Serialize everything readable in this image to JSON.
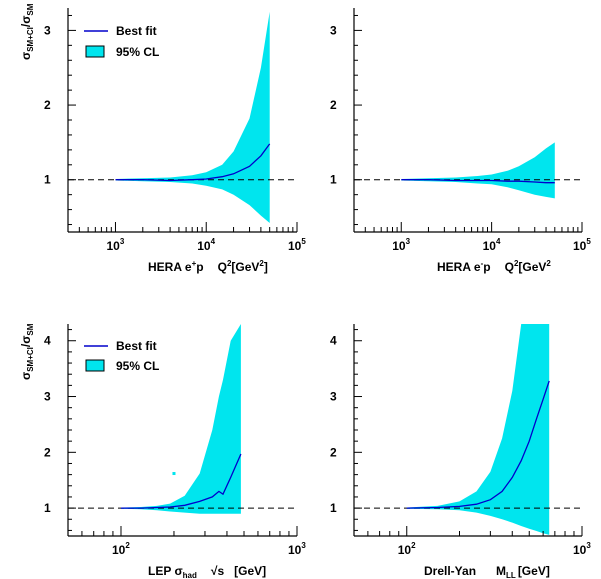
{
  "colors": {
    "band": "#00e5ee",
    "fit": "#0000cc",
    "reference": "#000000"
  },
  "chart_data": [
    {
      "type": "area",
      "id": "hera-eplus",
      "xscale": "log",
      "xlim": [
        300,
        100000
      ],
      "ylim": [
        0.3,
        3.3
      ],
      "yticks": [
        1,
        2,
        3
      ],
      "xtick_exponents": [
        3,
        4,
        5
      ],
      "xlabel": {
        "main": "HERA e",
        "sup1": "+",
        "tail": "p",
        "var": "Q",
        "sup2": "2",
        "unit": "[GeV",
        "sup3": "2",
        "end": "]"
      },
      "ylabel": {
        "base": "σ",
        "sub1": "SM+CI",
        "sep": "/σ",
        "sub2": "SM"
      },
      "reference_line": 1,
      "legend": {
        "fit_label": "Best fit",
        "band_label": "95% CL",
        "placement": "top-left"
      },
      "x": [
        1000,
        2000,
        4000,
        7000,
        10000,
        15000,
        20000,
        30000,
        40000,
        50000
      ],
      "best_fit": [
        1.0,
        1.0,
        0.99,
        1.0,
        1.01,
        1.04,
        1.08,
        1.18,
        1.32,
        1.48
      ],
      "band_upper": [
        1.01,
        1.02,
        1.03,
        1.06,
        1.1,
        1.2,
        1.38,
        1.82,
        2.5,
        3.25
      ],
      "band_lower": [
        0.99,
        0.98,
        0.97,
        0.95,
        0.92,
        0.87,
        0.8,
        0.66,
        0.52,
        0.42
      ]
    },
    {
      "type": "area",
      "id": "hera-eminus",
      "xscale": "log",
      "xlim": [
        300,
        100000
      ],
      "ylim": [
        0.3,
        3.3
      ],
      "yticks": [
        1,
        2,
        3
      ],
      "xtick_exponents": [
        3,
        4,
        5
      ],
      "xlabel": {
        "main": "HERA e",
        "sup1": "-",
        "tail": "p",
        "var": "Q",
        "sup2": "2",
        "unit": "[GeV",
        "sup3": "2",
        "end": ""
      },
      "ylabel": null,
      "reference_line": 1,
      "legend": null,
      "x": [
        1000,
        2000,
        4000,
        7000,
        10000,
        15000,
        20000,
        30000,
        40000,
        50000
      ],
      "best_fit": [
        1.0,
        1.0,
        0.99,
        0.99,
        0.99,
        0.98,
        0.98,
        0.97,
        0.96,
        0.96
      ],
      "band_upper": [
        1.01,
        1.02,
        1.03,
        1.05,
        1.07,
        1.12,
        1.18,
        1.3,
        1.42,
        1.5
      ],
      "band_lower": [
        0.99,
        0.98,
        0.97,
        0.95,
        0.94,
        0.9,
        0.86,
        0.8,
        0.77,
        0.75
      ]
    },
    {
      "type": "area",
      "id": "lep-had",
      "xscale": "log",
      "xlim": [
        50,
        1000
      ],
      "ylim": [
        0.5,
        4.3
      ],
      "yticks": [
        1,
        2,
        3,
        4
      ],
      "xtick_exponents": [
        2,
        3
      ],
      "xlabel": {
        "main": "LEP σ",
        "sub1": "had",
        "var": "√s",
        "unit": "[GeV]"
      },
      "ylabel": {
        "base": "σ",
        "sub1": "SM+CI",
        "sep": "/σ",
        "sub2": "SM"
      },
      "reference_line": 1,
      "legend": {
        "fit_label": "Best fit",
        "band_label": "95% CL",
        "placement": "top-left"
      },
      "x": [
        100,
        130,
        160,
        190,
        230,
        280,
        330,
        360,
        380,
        420,
        480
      ],
      "best_fit": [
        1.0,
        1.0,
        1.01,
        1.02,
        1.05,
        1.12,
        1.2,
        1.3,
        1.25,
        1.55,
        1.97
      ],
      "band_upper": [
        1.01,
        1.02,
        1.04,
        1.08,
        1.22,
        1.62,
        2.4,
        3.0,
        3.3,
        4.0,
        4.3
      ],
      "band_lower": [
        0.99,
        0.98,
        0.96,
        0.94,
        0.92,
        0.9,
        0.9,
        0.9,
        0.9,
        0.9,
        0.9
      ],
      "extra_point": {
        "x": 200,
        "y": 1.62
      }
    },
    {
      "type": "area",
      "id": "drell-yan",
      "xscale": "log",
      "xlim": [
        50,
        1000
      ],
      "ylim": [
        0.5,
        4.3
      ],
      "yticks": [
        1,
        2,
        3,
        4
      ],
      "xtick_exponents": [
        2,
        3
      ],
      "xlabel": {
        "main": "Drell-Yan",
        "var": "M",
        "sub1": "LL",
        "unit": "[GeV]"
      },
      "ylabel": null,
      "reference_line": 1,
      "legend": null,
      "x": [
        100,
        150,
        200,
        250,
        300,
        350,
        400,
        450,
        500,
        550,
        600,
        650
      ],
      "best_fit": [
        1.0,
        1.01,
        1.03,
        1.07,
        1.15,
        1.3,
        1.55,
        1.85,
        2.2,
        2.6,
        2.95,
        3.28
      ],
      "band_upper": [
        1.01,
        1.04,
        1.12,
        1.3,
        1.65,
        2.25,
        3.1,
        4.3,
        4.3,
        4.3,
        4.3,
        4.3
      ],
      "band_lower": [
        0.99,
        0.98,
        0.96,
        0.92,
        0.86,
        0.8,
        0.74,
        0.68,
        0.63,
        0.59,
        0.55,
        0.52
      ]
    }
  ]
}
